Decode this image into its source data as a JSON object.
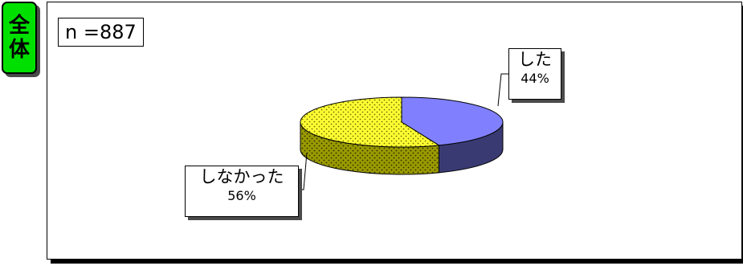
{
  "badge": {
    "chars": [
      "全",
      "体"
    ]
  },
  "sample": {
    "label": "n =887"
  },
  "chart_data": {
    "type": "pie",
    "title": "",
    "slices": [
      {
        "label": "した",
        "value": 44,
        "value_label": "44%",
        "color": "#8080ff"
      },
      {
        "label": "しなかった",
        "value": 56,
        "value_label": "56%",
        "color": "#ffff33"
      }
    ]
  }
}
